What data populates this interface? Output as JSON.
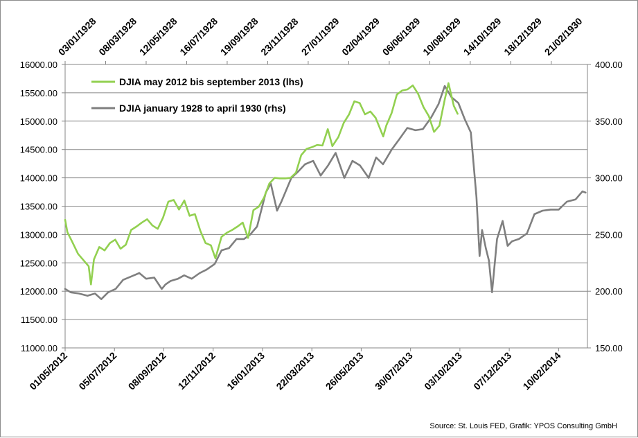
{
  "chart_data": {
    "type": "line",
    "title": "",
    "left_axis": {
      "ylim": [
        11000,
        16000
      ],
      "ticks": [
        "11000.00",
        "11500.00",
        "12000.00",
        "12500.00",
        "13000.00",
        "13500.00",
        "14000.00",
        "14500.00",
        "15000.00",
        "15500.00",
        "16000.00"
      ]
    },
    "right_axis": {
      "ylim": [
        150,
        400
      ],
      "ticks": [
        "150.00",
        "200.00",
        "250.00",
        "300.00",
        "350.00",
        "400.00"
      ]
    },
    "bottom_axis": {
      "range": [
        "2012-05-01",
        "2014-03-20"
      ],
      "ticks": [
        "01/05/2012",
        "05/07/2012",
        "08/09/2012",
        "12/11/2012",
        "16/01/2013",
        "22/03/2013",
        "26/05/2013",
        "30/07/2013",
        "03/10/2013",
        "07/12/2013",
        "10/02/2014"
      ]
    },
    "top_axis": {
      "range": [
        "1928-01-03",
        "1930-04-20"
      ],
      "ticks": [
        "03/01/1928",
        "08/03/1928",
        "12/05/1928",
        "16/07/1928",
        "19/09/1928",
        "23/11/1928",
        "27/01/1929",
        "02/04/1929",
        "06/06/1929",
        "10/08/1929",
        "14/10/1929",
        "18/12/1929",
        "21/02/1930"
      ]
    },
    "grid": true,
    "legend_position": "top-left",
    "series": [
      {
        "name": "DJIA may 2012 bis september 2013 (lhs)",
        "axis": "left",
        "x_axis": "bottom",
        "color": "#92d050",
        "x": [
          "2012-05-01",
          "2012-05-04",
          "2012-05-10",
          "2012-05-18",
          "2012-06-01",
          "2012-06-04",
          "2012-06-08",
          "2012-06-15",
          "2012-06-22",
          "2012-06-29",
          "2012-07-06",
          "2012-07-13",
          "2012-07-20",
          "2012-07-27",
          "2012-08-03",
          "2012-08-10",
          "2012-08-17",
          "2012-08-24",
          "2012-08-31",
          "2012-09-07",
          "2012-09-14",
          "2012-09-21",
          "2012-09-28",
          "2012-10-05",
          "2012-10-12",
          "2012-10-19",
          "2012-10-26",
          "2012-11-02",
          "2012-11-09",
          "2012-11-15",
          "2012-11-23",
          "2012-11-30",
          "2012-12-07",
          "2012-12-14",
          "2012-12-21",
          "2012-12-28",
          "2013-01-04",
          "2013-01-11",
          "2013-01-18",
          "2013-01-25",
          "2013-02-01",
          "2013-02-08",
          "2013-02-15",
          "2013-02-22",
          "2013-03-01",
          "2013-03-08",
          "2013-03-15",
          "2013-03-22",
          "2013-03-29",
          "2013-04-05",
          "2013-04-12",
          "2013-04-18",
          "2013-04-26",
          "2013-05-03",
          "2013-05-10",
          "2013-05-17",
          "2013-05-24",
          "2013-05-31",
          "2013-06-07",
          "2013-06-14",
          "2013-06-24",
          "2013-06-28",
          "2013-07-05",
          "2013-07-12",
          "2013-07-19",
          "2013-07-26",
          "2013-08-02",
          "2013-08-09",
          "2013-08-16",
          "2013-08-23",
          "2013-08-30",
          "2013-09-06",
          "2013-09-13",
          "2013-09-18",
          "2013-09-25",
          "2013-09-30"
        ],
        "values": [
          13260,
          13040,
          12880,
          12660,
          12440,
          12120,
          12560,
          12780,
          12720,
          12850,
          12910,
          12750,
          12820,
          13080,
          13140,
          13210,
          13270,
          13160,
          13100,
          13300,
          13580,
          13610,
          13440,
          13600,
          13330,
          13360,
          13070,
          12850,
          12810,
          12580,
          12960,
          13030,
          13080,
          13140,
          13210,
          12940,
          13430,
          13490,
          13650,
          13900,
          14000,
          13990,
          13990,
          14000,
          14090,
          14400,
          14510,
          14540,
          14580,
          14570,
          14860,
          14560,
          14720,
          14970,
          15120,
          15350,
          15320,
          15120,
          15170,
          15060,
          14730,
          14920,
          15140,
          15470,
          15540,
          15560,
          15630,
          15480,
          15250,
          15090,
          14810,
          14920,
          15380,
          15670,
          15270,
          15130
        ]
      },
      {
        "name": "DJIA january 1928 to april 1930 (rhs)",
        "axis": "right",
        "x_axis": "top",
        "color": "#7f7f7f",
        "x": [
          "1928-01-03",
          "1928-01-12",
          "1928-01-25",
          "1928-02-08",
          "1928-02-20",
          "1928-03-01",
          "1928-03-12",
          "1928-03-24",
          "1928-04-05",
          "1928-04-18",
          "1928-05-01",
          "1928-05-12",
          "1928-05-25",
          "1928-06-06",
          "1928-06-12",
          "1928-06-20",
          "1928-07-02",
          "1928-07-12",
          "1928-07-24",
          "1928-08-06",
          "1928-08-17",
          "1928-08-30",
          "1928-09-10",
          "1928-09-22",
          "1928-10-04",
          "1928-10-16",
          "1928-10-26",
          "1928-11-06",
          "1928-11-20",
          "1928-11-28",
          "1928-12-08",
          "1928-12-15",
          "1928-12-31",
          "1929-01-10",
          "1929-01-22",
          "1929-02-04",
          "1929-02-16",
          "1929-02-28",
          "1929-03-12",
          "1929-03-26",
          "1929-04-08",
          "1929-04-20",
          "1929-05-04",
          "1929-05-16",
          "1929-05-27",
          "1929-06-10",
          "1929-06-22",
          "1929-07-05",
          "1929-07-18",
          "1929-07-30",
          "1929-08-12",
          "1929-08-24",
          "1929-09-03",
          "1929-09-14",
          "1929-09-25",
          "1929-10-05",
          "1929-10-15",
          "1929-10-24",
          "1929-10-29",
          "1929-11-02",
          "1929-11-08",
          "1929-11-13",
          "1929-11-18",
          "1929-11-26",
          "1929-12-05",
          "1929-12-13",
          "1929-12-20",
          "1929-12-31",
          "1930-01-13",
          "1930-01-25",
          "1930-02-07",
          "1930-02-20",
          "1930-03-05",
          "1930-03-18",
          "1930-04-01",
          "1930-04-12",
          "1930-04-17"
        ],
        "values": [
          202,
          199,
          198,
          196,
          198,
          193,
          199,
          202,
          210,
          213,
          216,
          211,
          212,
          202,
          206,
          209,
          211,
          214,
          211,
          216,
          219,
          224,
          236,
          238,
          246,
          246,
          250,
          257,
          287,
          295,
          271,
          279,
          300,
          305,
          312,
          315,
          302,
          311,
          322,
          300,
          315,
          311,
          300,
          318,
          312,
          325,
          334,
          344,
          342,
          343,
          353,
          365,
          381,
          371,
          366,
          352,
          340,
          283,
          231,
          254,
          238,
          227,
          199,
          246,
          262,
          240,
          244,
          246,
          251,
          268,
          271,
          272,
          272,
          279,
          281,
          288,
          287
        ]
      }
    ],
    "source": "Source: St. Louis FED, Grafik: YPOS Consulting GmbH"
  }
}
